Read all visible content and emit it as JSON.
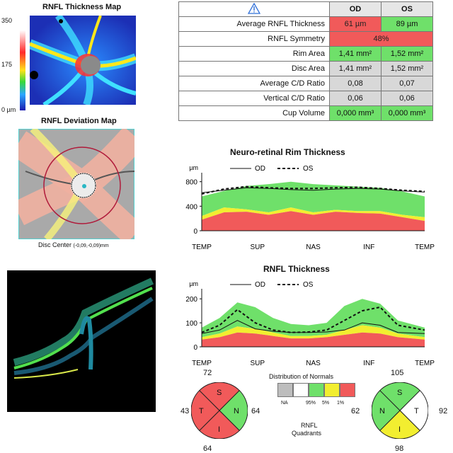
{
  "thickness_map": {
    "title": "RNFL Thickness Map",
    "scale_top": "350",
    "scale_mid": "175",
    "scale_bottom": "0 µm"
  },
  "deviation_map": {
    "title": "RNFL Deviation Map",
    "disc_center_label": "Disc Center",
    "disc_center_value": "(-0,09,-0,09)mm"
  },
  "table": {
    "col_od": "OD",
    "col_os": "OS",
    "rows": [
      {
        "label": "Average RNFL Thickness",
        "od": "61 µm",
        "os": "89 µm",
        "od_color": "red",
        "os_color": "green"
      },
      {
        "label": "RNFL Symmetry",
        "merged": "48%",
        "merged_color": "red"
      },
      {
        "label": "Rim Area",
        "od": "1,41 mm²",
        "os": "1,52 mm²",
        "od_color": "green",
        "os_color": "green"
      },
      {
        "label": "Disc Area",
        "od": "1,41 mm²",
        "os": "1,52 mm²",
        "od_color": "gray",
        "os_color": "gray"
      },
      {
        "label": "Average C/D Ratio",
        "od": "0,08",
        "os": "0,07",
        "od_color": "gray",
        "os_color": "gray"
      },
      {
        "label": "Vertical C/D Ratio",
        "od": "0,06",
        "os": "0,06",
        "od_color": "gray",
        "os_color": "gray"
      },
      {
        "label": "Cup Volume",
        "od": "0,000 mm³",
        "os": "0,000 mm³",
        "od_color": "green",
        "os_color": "green"
      }
    ]
  },
  "chart_data": [
    {
      "type": "area",
      "title": "Neuro-retinal Rim Thickness",
      "ylabel": "µm",
      "ylim": [
        0,
        900
      ],
      "yticks": [
        "800",
        "400",
        "0"
      ],
      "categories": [
        "TEMP",
        "SUP",
        "NAS",
        "INF",
        "TEMP"
      ],
      "legend": [
        "OD",
        "OS"
      ],
      "x": [
        0,
        0.1,
        0.2,
        0.3,
        0.4,
        0.5,
        0.6,
        0.7,
        0.8,
        0.9,
        1.0
      ],
      "bands": {
        "p1": [
          180,
          300,
          310,
          260,
          320,
          260,
          310,
          290,
          280,
          220,
          160
        ],
        "p5": [
          240,
          380,
          350,
          300,
          380,
          300,
          340,
          320,
          320,
          260,
          220
        ],
        "p95": [
          560,
          650,
          730,
          760,
          800,
          760,
          740,
          720,
          700,
          640,
          560
        ]
      },
      "series": [
        {
          "name": "OD",
          "values": [
            620,
            660,
            700,
            690,
            670,
            660,
            680,
            690,
            680,
            650,
            630
          ]
        },
        {
          "name": "OS",
          "values": [
            600,
            680,
            720,
            700,
            690,
            690,
            700,
            710,
            690,
            660,
            640
          ]
        }
      ]
    },
    {
      "type": "area",
      "title": "RNFL Thickness",
      "ylabel": "µm",
      "ylim": [
        0,
        230
      ],
      "yticks": [
        "200",
        "100",
        "0"
      ],
      "categories": [
        "TEMP",
        "SUP",
        "NAS",
        "INF",
        "TEMP"
      ],
      "legend": [
        "OD",
        "OS"
      ],
      "x": [
        0,
        0.08,
        0.16,
        0.24,
        0.32,
        0.4,
        0.48,
        0.56,
        0.64,
        0.72,
        0.8,
        0.88,
        1.0
      ],
      "bands": {
        "p1": [
          30,
          40,
          60,
          55,
          45,
          35,
          35,
          40,
          50,
          60,
          55,
          40,
          30
        ],
        "p5": [
          40,
          55,
          85,
          75,
          60,
          45,
          45,
          50,
          70,
          90,
          80,
          55,
          40
        ],
        "p95": [
          80,
          120,
          185,
          165,
          120,
          95,
          90,
          100,
          170,
          200,
          180,
          110,
          80
        ]
      },
      "series": [
        {
          "name": "OD",
          "values": [
            55,
            70,
            110,
            75,
            65,
            60,
            60,
            62,
            70,
            100,
            90,
            60,
            55
          ]
        },
        {
          "name": "OS",
          "values": [
            60,
            90,
            155,
            100,
            70,
            60,
            62,
            70,
            110,
            150,
            165,
            90,
            70
          ]
        }
      ]
    }
  ],
  "normals_legend": {
    "title": "Distribution of Normals",
    "na": "NA",
    "p95": "95%",
    "p5": "5%",
    "p1": "1%"
  },
  "quadrants": {
    "center_label_1": "RNFL",
    "center_label_2": "Quadrants",
    "od": {
      "S": "72",
      "T": "43",
      "N": "64",
      "I": "64"
    },
    "os": {
      "S": "105",
      "N": "62",
      "T": "92",
      "I": "98"
    },
    "letters": {
      "S": "S",
      "T": "T",
      "N": "N",
      "I": "I"
    }
  },
  "colors": {
    "red": "#f15a5a",
    "yellow": "#f2ee30",
    "green": "#6fe06a",
    "white": "#ffffff",
    "gray": "#bdbdbd"
  }
}
